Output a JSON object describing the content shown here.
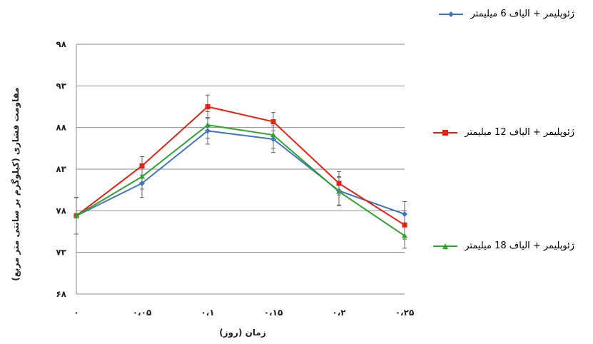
{
  "chart_data": {
    "type": "line",
    "xlabel": "زمان (روز)",
    "ylabel": "مقاومت فشاری (کیلوگرم بر سانتی متر مربع)",
    "ylim": [
      68,
      98
    ],
    "yticks": [
      "۶۸",
      "۷۳",
      "۷۸",
      "۸۳",
      "۸۸",
      "۹۳",
      "۹۸"
    ],
    "ytick_values": [
      68,
      73,
      78,
      83,
      88,
      93,
      98
    ],
    "categories": [
      "۰",
      "۰،۰۵",
      "۰،۱",
      "۰،۱۵",
      "۰،۲",
      "۰،۲۵"
    ],
    "x": [
      0,
      0.05,
      0.1,
      0.15,
      0.2,
      0.25
    ],
    "grid": true,
    "error_bars": true,
    "series": [
      {
        "name": "ژئوپلیمر + الیاف 6 میلیمتر",
        "color": "#4472C4",
        "marker": "diamond",
        "values": [
          77.4,
          81.3,
          87.6,
          86.6,
          80.4,
          77.6
        ],
        "errors": [
          2.2,
          1.7,
          1.6,
          1.6,
          1.7,
          1.5
        ]
      },
      {
        "name": "ژئوپلیمر + الیاف 12 میلیمتر",
        "color": "#E8200F",
        "marker": "square",
        "values": [
          77.4,
          83.4,
          90.5,
          88.7,
          81.3,
          76.3
        ],
        "errors": [
          2.2,
          1.1,
          1.4,
          1.1,
          1.4,
          1.7
        ]
      },
      {
        "name": "ژئوپلیمر + الیاف 18 میلیمتر",
        "color": "#2DA52D",
        "marker": "triangle",
        "values": [
          77.4,
          82.1,
          88.3,
          87.1,
          80.3,
          75.0
        ],
        "errors": [
          2.2,
          1.5,
          1.6,
          1.6,
          1.7,
          1.5
        ]
      }
    ]
  },
  "legend": [
    {
      "text": "ژئوپلیمر + الیاف 6 میلیمتر"
    },
    {
      "text": "ژئوپلیمر + الیاف 12 میلیمتر"
    },
    {
      "text": "ژئوپلیمر + الیاف 18 میلیمتر"
    }
  ]
}
